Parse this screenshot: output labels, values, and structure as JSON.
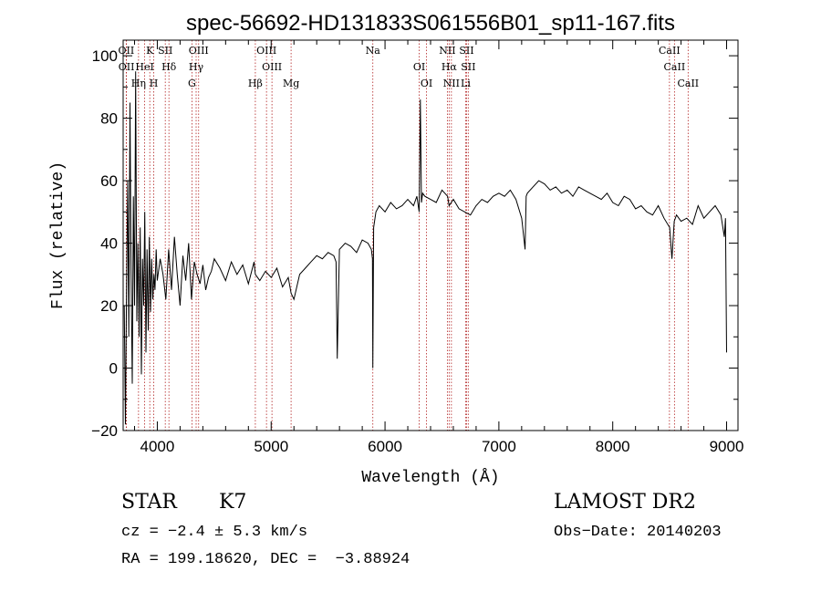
{
  "chart_data": {
    "type": "line",
    "title": "spec-56692-HD131833S061556B01_sp11-167.fits",
    "xlabel": "Wavelength (Å)",
    "ylabel": "Flux (relative)",
    "xlim": [
      3700,
      9100
    ],
    "ylim": [
      -20,
      105
    ],
    "x_ticks": [
      4000,
      5000,
      6000,
      7000,
      8000,
      9000
    ],
    "y_ticks": [
      -20,
      0,
      20,
      40,
      60,
      80,
      100
    ],
    "line_color": "#000000",
    "marker_color": "#b22222",
    "series": [
      {
        "x": [
          3710,
          3720,
          3730,
          3740,
          3750,
          3760,
          3770,
          3780,
          3790,
          3800,
          3810,
          3820,
          3830,
          3840,
          3850,
          3860,
          3870,
          3880,
          3890,
          3900,
          3910,
          3920,
          3930,
          3940,
          3950,
          3960,
          3970,
          3980,
          3990,
          4000,
          4025,
          4050,
          4075,
          4100,
          4125,
          4150,
          4175,
          4200,
          4225,
          4250,
          4275,
          4300,
          4325,
          4350,
          4375,
          4400,
          4425,
          4450,
          4475,
          4500,
          4550,
          4600,
          4650,
          4700,
          4750,
          4800,
          4850,
          4861,
          4900,
          4950,
          5000,
          5050,
          5100,
          5150,
          5175,
          5200,
          5250,
          5300,
          5350,
          5400,
          5450,
          5500,
          5550,
          5570,
          5580,
          5600,
          5650,
          5700,
          5750,
          5800,
          5850,
          5880,
          5890,
          5893,
          5900,
          5920,
          5950,
          6000,
          6050,
          6100,
          6150,
          6200,
          6250,
          6280,
          6300,
          6310,
          6320,
          6330,
          6350,
          6400,
          6450,
          6500,
          6550,
          6563,
          6600,
          6650,
          6700,
          6750,
          6800,
          6850,
          6900,
          6950,
          7000,
          7050,
          7100,
          7150,
          7200,
          7230,
          7240,
          7250,
          7300,
          7350,
          7400,
          7450,
          7500,
          7550,
          7600,
          7650,
          7700,
          7750,
          7800,
          7850,
          7900,
          7950,
          8000,
          8050,
          8100,
          8150,
          8200,
          8250,
          8300,
          8350,
          8400,
          8450,
          8500,
          8520,
          8540,
          8560,
          8600,
          8650,
          8700,
          8750,
          8800,
          8850,
          8900,
          8950,
          8980,
          8990,
          9000
        ],
        "y": [
          20,
          -18,
          25,
          60,
          10,
          85,
          30,
          -5,
          55,
          20,
          95,
          15,
          40,
          10,
          45,
          -2,
          35,
          20,
          50,
          5,
          38,
          12,
          42,
          18,
          35,
          22,
          30,
          25,
          38,
          28,
          35,
          30,
          22,
          38,
          25,
          42,
          30,
          20,
          36,
          28,
          40,
          22,
          34,
          30,
          27,
          33,
          25,
          29,
          31,
          35,
          32,
          28,
          34,
          30,
          33,
          27,
          34,
          30,
          28,
          31,
          29,
          32,
          26,
          29,
          24,
          22,
          30,
          32,
          34,
          36,
          35,
          37,
          36,
          34,
          3,
          38,
          40,
          39,
          37,
          41,
          40,
          38,
          35,
          0,
          45,
          50,
          52,
          50,
          53,
          51,
          52,
          54,
          52,
          55,
          50,
          86,
          53,
          56,
          55,
          54,
          53,
          57,
          55,
          52,
          54,
          51,
          50,
          49,
          52,
          54,
          53,
          55,
          56,
          55,
          57,
          54,
          48,
          38,
          55,
          56,
          58,
          60,
          59,
          57,
          58,
          56,
          57,
          55,
          58,
          57,
          56,
          55,
          54,
          56,
          53,
          52,
          55,
          54,
          51,
          52,
          50,
          49,
          52,
          48,
          45,
          35,
          47,
          49,
          47,
          48,
          46,
          52,
          48,
          50,
          52,
          49,
          42,
          48,
          5
        ]
      }
    ],
    "annotations": [
      {
        "label": "OII",
        "x": 3727
      },
      {
        "label": "OII",
        "x": 3729
      },
      {
        "label": "Hη",
        "x": 3835
      },
      {
        "label": "K",
        "x": 3934
      },
      {
        "label": "HeI",
        "x": 3889
      },
      {
        "label": "H",
        "x": 3969
      },
      {
        "label": "SII",
        "x": 4070
      },
      {
        "label": "Hδ",
        "x": 4102
      },
      {
        "label": "G",
        "x": 4304
      },
      {
        "label": "OIII",
        "x": 4363
      },
      {
        "label": "Hγ",
        "x": 4341
      },
      {
        "label": "Hβ",
        "x": 4861
      },
      {
        "label": "OIII",
        "x": 4959
      },
      {
        "label": "OIII",
        "x": 5007
      },
      {
        "label": "Mg",
        "x": 5175
      },
      {
        "label": "Na",
        "x": 5893
      },
      {
        "label": "OI",
        "x": 6300
      },
      {
        "label": "OI",
        "x": 6364
      },
      {
        "label": "NII",
        "x": 6548
      },
      {
        "label": "Hα",
        "x": 6563
      },
      {
        "label": "NII",
        "x": 6583
      },
      {
        "label": "SII",
        "x": 6716
      },
      {
        "label": "SII",
        "x": 6731
      },
      {
        "label": "Li",
        "x": 6708
      },
      {
        "label": "CaII",
        "x": 8498
      },
      {
        "label": "CaII",
        "x": 8542
      },
      {
        "label": "CaII",
        "x": 8662
      }
    ]
  },
  "info": {
    "object_class": "STAR",
    "subclass": "K7",
    "survey": "LAMOST DR2",
    "redshift_line": "cz = −2.4 ± 5.3 km/s",
    "obs_date_line": "Obs−Date: 20140203",
    "coord_line": "RA = 199.18620, DEC =  −3.88924"
  }
}
